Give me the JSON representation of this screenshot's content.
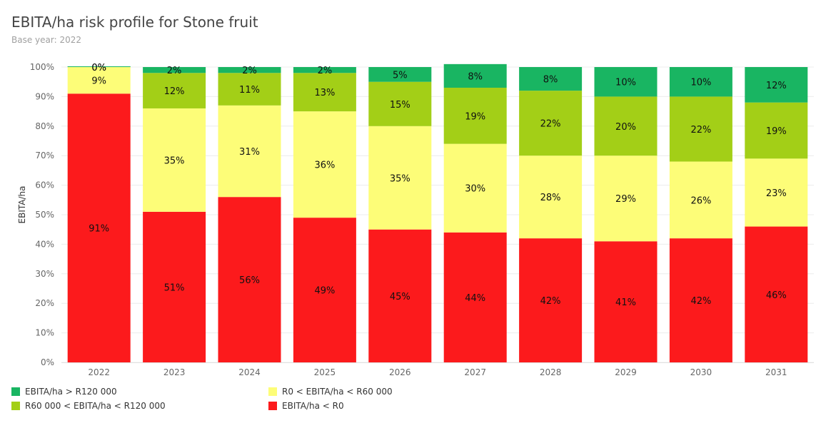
{
  "title": "EBITA/ha risk profile for Stone fruit",
  "subtitle": "Base year: 2022",
  "colors": {
    "gt120k": "#19b562",
    "r60k_r120k": "#a3cf17",
    "r0_r60k": "#fdfd78",
    "lt0": "#fc1a1c"
  },
  "chart_data": {
    "type": "bar",
    "stacked": true,
    "ylabel": "EBITA/ha",
    "xlabel": "",
    "ylim": [
      0,
      100
    ],
    "yticks": [
      "0%",
      "10%",
      "20%",
      "30%",
      "40%",
      "50%",
      "60%",
      "70%",
      "80%",
      "90%",
      "100%"
    ],
    "categories": [
      "2022",
      "2023",
      "2024",
      "2025",
      "2026",
      "2027",
      "2028",
      "2029",
      "2030",
      "2031"
    ],
    "series": [
      {
        "name": "EBITA/ha < R0",
        "color_key": "lt0",
        "values": [
          91,
          51,
          56,
          49,
          45,
          44,
          42,
          41,
          42,
          46
        ],
        "labels": [
          "91%",
          "51%",
          "56%",
          "49%",
          "45%",
          "44%",
          "42%",
          "41%",
          "42%",
          "46%"
        ]
      },
      {
        "name": "R0 < EBITA/ha < R60 000",
        "color_key": "r0_r60k",
        "values": [
          9,
          35,
          31,
          36,
          35,
          30,
          28,
          29,
          26,
          23
        ],
        "labels": [
          "9%",
          "35%",
          "31%",
          "36%",
          "35%",
          "30%",
          "28%",
          "29%",
          "26%",
          "23%"
        ]
      },
      {
        "name": "R60 000 < EBITA/ha < R120 000",
        "color_key": "r60k_r120k",
        "values": [
          0,
          12,
          11,
          13,
          15,
          19,
          22,
          20,
          22,
          19
        ],
        "labels": [
          "0%",
          "12%",
          "11%",
          "13%",
          "15%",
          "19%",
          "22%",
          "20%",
          "22%",
          "19%"
        ]
      },
      {
        "name": "EBITA/ha > R120 000",
        "color_key": "gt120k",
        "values": [
          0,
          2,
          2,
          2,
          5,
          8,
          8,
          10,
          10,
          12
        ],
        "labels": [
          "0%",
          "2%",
          "2%",
          "2%",
          "5%",
          "8%",
          "8%",
          "10%",
          "10%",
          "12%"
        ]
      }
    ],
    "grid": true,
    "legend_position": "bottom"
  },
  "legend": [
    {
      "label": "EBITA/ha > R120 000",
      "color_key": "gt120k"
    },
    {
      "label": "R0 < EBITA/ha < R60 000",
      "color_key": "r0_r60k"
    },
    {
      "label": "R60 000 < EBITA/ha < R120 000",
      "color_key": "r60k_r120k"
    },
    {
      "label": "EBITA/ha < R0",
      "color_key": "lt0"
    }
  ]
}
